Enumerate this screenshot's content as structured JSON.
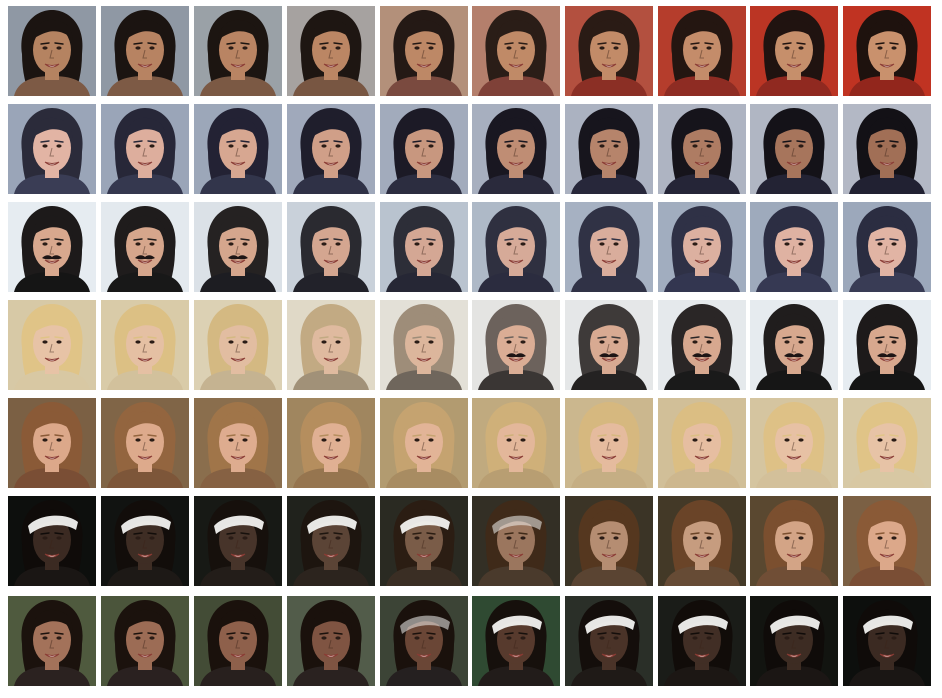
{
  "figure": {
    "rows": [
      {
        "id": "row-1",
        "tiles": [
          {
            "bg": "#8f98a4",
            "skin": "#b58361",
            "hair": "#1b1411",
            "shirt": "#7d5a45",
            "accessory": "none",
            "mustache": false
          },
          {
            "bg": "#8f98a4",
            "skin": "#b78362",
            "hair": "#1b1411",
            "shirt": "#7d5a45",
            "accessory": "none",
            "mustache": false
          },
          {
            "bg": "#9aa1a7",
            "skin": "#b98463",
            "hair": "#1c1511",
            "shirt": "#7b5944",
            "accessory": "none",
            "mustache": false
          },
          {
            "bg": "#a6a2a0",
            "skin": "#bb8664",
            "hair": "#1e1612",
            "shirt": "#785642",
            "accessory": "none",
            "mustache": false
          },
          {
            "bg": "#b3907a",
            "skin": "#bd8866",
            "hair": "#241915",
            "shirt": "#7a4a3f",
            "accessory": "none",
            "mustache": false
          },
          {
            "bg": "#b47f6c",
            "skin": "#c08a67",
            "hair": "#2a1d17",
            "shirt": "#7f4138",
            "accessory": "none",
            "mustache": false
          },
          {
            "bg": "#b3503f",
            "skin": "#c28b68",
            "hair": "#2a1b15",
            "shirt": "#8b2f25",
            "accessory": "none",
            "mustache": false
          },
          {
            "bg": "#b53d2c",
            "skin": "#c48c6a",
            "hair": "#241611",
            "shirt": "#8e2c23",
            "accessory": "none",
            "mustache": false
          },
          {
            "bg": "#bb3524",
            "skin": "#c68f6b",
            "hair": "#201310",
            "shirt": "#902920",
            "accessory": "none",
            "mustache": false
          },
          {
            "bg": "#c03322",
            "skin": "#c9916d",
            "hair": "#1e120e",
            "shirt": "#92261c",
            "accessory": "none",
            "mustache": false
          }
        ]
      },
      {
        "id": "row-2",
        "tiles": [
          {
            "bg": "#9aa5b8",
            "skin": "#e2b4a4",
            "hair": "#2b2b3a",
            "shirt": "#3a3d55",
            "accessory": "none",
            "mustache": false
          },
          {
            "bg": "#9aa5b8",
            "skin": "#ddae9d",
            "hair": "#272738",
            "shirt": "#35384f",
            "accessory": "none",
            "mustache": false
          },
          {
            "bg": "#9ca7b9",
            "skin": "#d7a791",
            "hair": "#232234",
            "shirt": "#32354b",
            "accessory": "none",
            "mustache": false
          },
          {
            "bg": "#a0a9bb",
            "skin": "#d09f88",
            "hair": "#1f1e2c",
            "shirt": "#2f3146",
            "accessory": "none",
            "mustache": false
          },
          {
            "bg": "#a2abbc",
            "skin": "#c8977f",
            "hair": "#1c1a26",
            "shirt": "#2c2d40",
            "accessory": "none",
            "mustache": false
          },
          {
            "bg": "#a7afbf",
            "skin": "#bf8d74",
            "hair": "#191721",
            "shirt": "#2a2a3c",
            "accessory": "none",
            "mustache": false
          },
          {
            "bg": "#abb2c1",
            "skin": "#b6846b",
            "hair": "#17151d",
            "shirt": "#27273a",
            "accessory": "none",
            "mustache": false
          },
          {
            "bg": "#aeb4c2",
            "skin": "#ae7c63",
            "hair": "#16141b",
            "shirt": "#252537",
            "accessory": "none",
            "mustache": false
          },
          {
            "bg": "#b0b6c3",
            "skin": "#a7755c",
            "hair": "#141218",
            "shirt": "#232334",
            "accessory": "none",
            "mustache": false
          },
          {
            "bg": "#b3b8c5",
            "skin": "#a16f56",
            "hair": "#131116",
            "shirt": "#212132",
            "accessory": "none",
            "mustache": false
          }
        ]
      },
      {
        "id": "row-3",
        "tiles": [
          {
            "bg": "#e6ecf1",
            "skin": "#d8a88e",
            "hair": "#1d1a1a",
            "shirt": "#151515",
            "accessory": "none",
            "mustache": true
          },
          {
            "bg": "#e3e9ee",
            "skin": "#d6a68c",
            "hair": "#1f1c1c",
            "shirt": "#181818",
            "accessory": "none",
            "mustache": true
          },
          {
            "bg": "#dbe1e7",
            "skin": "#d5a68d",
            "hair": "#252222",
            "shirt": "#1d1d22",
            "accessory": "none",
            "mustache": true
          },
          {
            "bg": "#c9d1da",
            "skin": "#d4a690",
            "hair": "#2a2a30",
            "shirt": "#22222a",
            "accessory": "none",
            "mustache": false
          },
          {
            "bg": "#b9c3cf",
            "skin": "#d4a794",
            "hair": "#2d2e38",
            "shirt": "#262735",
            "accessory": "none",
            "mustache": false
          },
          {
            "bg": "#aeb9c7",
            "skin": "#d6aa98",
            "hair": "#2f3040",
            "shirt": "#2b2c3f",
            "accessory": "none",
            "mustache": false
          },
          {
            "bg": "#a6b1c2",
            "skin": "#d9ad9c",
            "hair": "#303245",
            "shirt": "#303246",
            "accessory": "none",
            "mustache": false
          },
          {
            "bg": "#a1adbf",
            "skin": "#dcb0a0",
            "hair": "#2f3146",
            "shirt": "#333650",
            "accessory": "none",
            "mustache": false
          },
          {
            "bg": "#9eaabc",
            "skin": "#dfb2a2",
            "hair": "#2c2e43",
            "shirt": "#363953",
            "accessory": "none",
            "mustache": false
          },
          {
            "bg": "#9ca8bb",
            "skin": "#e1b4a4",
            "hair": "#2b2d41",
            "shirt": "#393c55",
            "accessory": "none",
            "mustache": false
          }
        ]
      },
      {
        "id": "row-4",
        "tiles": [
          {
            "bg": "#d7c9a6",
            "skin": "#e7c3a6",
            "hair": "#e0c487",
            "shirt": "#d8c8a3",
            "accessory": "none",
            "mustache": false
          },
          {
            "bg": "#d9cba8",
            "skin": "#e5c0a3",
            "hair": "#dcc084",
            "shirt": "#d2c19c",
            "accessory": "none",
            "mustache": false
          },
          {
            "bg": "#dcd1b4",
            "skin": "#e2bda1",
            "hair": "#d4b982",
            "shirt": "#c5b391",
            "accessory": "none",
            "mustache": false
          },
          {
            "bg": "#e0d9c7",
            "skin": "#dfba9f",
            "hair": "#c2aa83",
            "shirt": "#a19178",
            "accessory": "none",
            "mustache": false
          },
          {
            "bg": "#e3e0d7",
            "skin": "#dcb69c",
            "hair": "#9e8d79",
            "shirt": "#6f665c",
            "accessory": "none",
            "mustache": false
          },
          {
            "bg": "#e4e4e2",
            "skin": "#daad95",
            "hair": "#6c625c",
            "shirt": "#3a3634",
            "accessory": "none",
            "mustache": true
          },
          {
            "bg": "#e5e7e8",
            "skin": "#d8aa92",
            "hair": "#3e3a39",
            "shirt": "#242222",
            "accessory": "none",
            "mustache": true
          },
          {
            "bg": "#e5e9ec",
            "skin": "#d7a88f",
            "hair": "#2a2626",
            "shirt": "#1a1a1a",
            "accessory": "none",
            "mustache": true
          },
          {
            "bg": "#e6ebef",
            "skin": "#d7a88e",
            "hair": "#201d1d",
            "shirt": "#161616",
            "accessory": "none",
            "mustache": true
          },
          {
            "bg": "#e6ecf1",
            "skin": "#d8a88e",
            "hair": "#1d1a1a",
            "shirt": "#151515",
            "accessory": "none",
            "mustache": true
          }
        ]
      },
      {
        "id": "row-5",
        "tiles": [
          {
            "bg": "#7b6044",
            "skin": "#dca88a",
            "hair": "#8a5a37",
            "shirt": "#7a4e35",
            "accessory": "none",
            "mustache": false
          },
          {
            "bg": "#806547",
            "skin": "#ddaa8c",
            "hair": "#93653f",
            "shirt": "#7d5639",
            "accessory": "none",
            "mustache": false
          },
          {
            "bg": "#8a6e4d",
            "skin": "#deac8f",
            "hair": "#a07549",
            "shirt": "#866143",
            "accessory": "none",
            "mustache": false
          },
          {
            "bg": "#a0865f",
            "skin": "#e0b093",
            "hair": "#b58e5e",
            "shirt": "#96754f",
            "accessory": "none",
            "mustache": false
          },
          {
            "bg": "#b29b70",
            "skin": "#e2b497",
            "hair": "#c5a370",
            "shirt": "#a88c62",
            "accessory": "none",
            "mustache": false
          },
          {
            "bg": "#c0aa7f",
            "skin": "#e3b79a",
            "hair": "#cfb079",
            "shirt": "#b89e72",
            "accessory": "none",
            "mustache": false
          },
          {
            "bg": "#cbb78e",
            "skin": "#e5bb9e",
            "hair": "#d6b87f",
            "shirt": "#c5ae84",
            "accessory": "none",
            "mustache": false
          },
          {
            "bg": "#d1bf98",
            "skin": "#e6bea1",
            "hair": "#dbbe83",
            "shirt": "#cdb78e",
            "accessory": "none",
            "mustache": false
          },
          {
            "bg": "#d5c5a0",
            "skin": "#e7c1a4",
            "hair": "#dec186",
            "shirt": "#d3c09a",
            "accessory": "none",
            "mustache": false
          },
          {
            "bg": "#d7c9a6",
            "skin": "#e7c3a6",
            "hair": "#e0c487",
            "shirt": "#d8c8a3",
            "accessory": "none",
            "mustache": false
          }
        ]
      },
      {
        "id": "row-6",
        "tiles": [
          {
            "bg": "#0d0f0d",
            "skin": "#3b2a22",
            "hair": "#0f0b09",
            "shirt": "#1a1614",
            "accessory": "headband",
            "mustache": false
          },
          {
            "bg": "#111311",
            "skin": "#3e2d24",
            "hair": "#120d0a",
            "shirt": "#1d1916",
            "accessory": "headband",
            "mustache": false
          },
          {
            "bg": "#171915",
            "skin": "#47342a",
            "hair": "#16100c",
            "shirt": "#231d19",
            "accessory": "headband",
            "mustache": false
          },
          {
            "bg": "#20221c",
            "skin": "#5b4436",
            "hair": "#1d150f",
            "shirt": "#2c241e",
            "accessory": "headband",
            "mustache": false
          },
          {
            "bg": "#2a2a22",
            "skin": "#7a5c48",
            "hair": "#2b1d13",
            "shirt": "#3a2e24",
            "accessory": "headband",
            "mustache": false
          },
          {
            "bg": "#332f25",
            "skin": "#9b765e",
            "hair": "#3f2a19",
            "shirt": "#4a3a2c",
            "accessory": "fade",
            "mustache": false
          },
          {
            "bg": "#3b3426",
            "skin": "#b58d72",
            "hair": "#55371f",
            "shirt": "#5a4432",
            "accessory": "none",
            "mustache": false
          },
          {
            "bg": "#433927",
            "skin": "#c69c7f",
            "hair": "#6a4428",
            "shirt": "#664b35",
            "accessory": "none",
            "mustache": false
          },
          {
            "bg": "#5a4830",
            "skin": "#d3a486",
            "hair": "#7b4f2f",
            "shirt": "#704e36",
            "accessory": "none",
            "mustache": false
          },
          {
            "bg": "#7b6044",
            "skin": "#dca88a",
            "hair": "#8a5a37",
            "shirt": "#7a4e35",
            "accessory": "none",
            "mustache": false
          }
        ]
      },
      {
        "id": "row-7",
        "tiles": [
          {
            "bg": "#4f5a3e",
            "skin": "#a3725a",
            "hair": "#1b120d",
            "shirt": "#2b2220",
            "accessory": "none",
            "mustache": false
          },
          {
            "bg": "#4b553b",
            "skin": "#9c6c55",
            "hair": "#1b120d",
            "shirt": "#2a2120",
            "accessory": "none",
            "mustache": false
          },
          {
            "bg": "#434c36",
            "skin": "#8e604b",
            "hair": "#1a110c",
            "shirt": "#28201e",
            "accessory": "none",
            "mustache": false
          },
          {
            "bg": "#525c4a",
            "skin": "#7f5442",
            "hair": "#1a110c",
            "shirt": "#2a2220",
            "accessory": "none",
            "mustache": false
          },
          {
            "bg": "#3c4436",
            "skin": "#6a4636",
            "hair": "#1a110c",
            "shirt": "#252020",
            "accessory": "fade",
            "mustache": false
          },
          {
            "bg": "#2f4a32",
            "skin": "#573a2d",
            "hair": "#16100c",
            "shirt": "#221c1a",
            "accessory": "headband",
            "mustache": false
          },
          {
            "bg": "#2a2f28",
            "skin": "#4a3328",
            "hair": "#140e0b",
            "shirt": "#1f1a17",
            "accessory": "headband",
            "mustache": false
          },
          {
            "bg": "#1a1c18",
            "skin": "#412e25",
            "hair": "#110c09",
            "shirt": "#1c1714",
            "accessory": "headband",
            "mustache": false
          },
          {
            "bg": "#121410",
            "skin": "#3d2c23",
            "hair": "#0f0b09",
            "shirt": "#1b1614",
            "accessory": "headband",
            "mustache": false
          },
          {
            "bg": "#0d0f0d",
            "skin": "#3b2a22",
            "hair": "#0f0b09",
            "shirt": "#1a1614",
            "accessory": "headband",
            "mustache": false
          }
        ]
      }
    ]
  }
}
